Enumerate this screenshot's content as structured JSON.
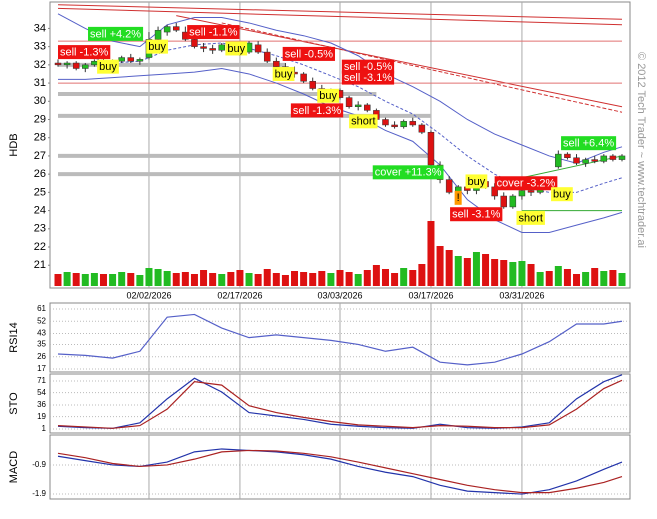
{
  "watermark": "© 2012 Tech Trader ~ www.techtrader.ai",
  "chart_data": [
    {
      "type": "candlestick",
      "ylabel": "HDB",
      "categories": [
        null,
        null,
        null,
        null,
        null,
        null,
        null,
        null,
        null,
        null,
        "02/02/2026",
        null,
        null,
        null,
        null,
        null,
        null,
        null,
        null,
        null,
        "02/17/2026",
        null,
        null,
        null,
        null,
        null,
        null,
        null,
        null,
        null,
        null,
        "03/03/2026",
        null,
        null,
        null,
        null,
        null,
        null,
        null,
        null,
        null,
        "03/17/2026",
        null,
        null,
        null,
        null,
        null,
        null,
        null,
        null,
        null,
        "03/31/2026",
        null,
        null,
        null,
        null,
        null,
        null,
        null,
        null,
        null,
        null,
        null
      ],
      "open": [
        32.1,
        32.0,
        32.1,
        31.8,
        32.0,
        32.2,
        32.1,
        32.2,
        32.4,
        32.2,
        32.4,
        33.4,
        33.8,
        34.1,
        33.8,
        33.4,
        33.0,
        32.9,
        32.8,
        33.0,
        32.8,
        32.7,
        33.1,
        32.7,
        32.2,
        31.9,
        31.6,
        31.5,
        31.1,
        30.7,
        30.4,
        30.6,
        30.2,
        29.7,
        29.8,
        29.5,
        29.0,
        28.7,
        28.6,
        28.9,
        28.7,
        28.3,
        26.5,
        25.7,
        25.0,
        25.3,
        25.1,
        25.6,
        25.3,
        24.8,
        24.2,
        24.8,
        25.1,
        25.0,
        25.5,
        26.4,
        27.1,
        26.9,
        26.6,
        26.8,
        26.7,
        27.0,
        26.8
      ],
      "high": [
        32.3,
        32.2,
        32.2,
        32.1,
        32.3,
        32.4,
        32.3,
        32.5,
        32.6,
        32.4,
        33.8,
        34.1,
        34.2,
        34.3,
        34.1,
        33.6,
        33.2,
        33.1,
        33.2,
        33.2,
        33.0,
        33.3,
        33.3,
        32.9,
        32.4,
        32.1,
        31.9,
        31.6,
        31.3,
        30.9,
        30.7,
        30.7,
        30.3,
        30.0,
        29.9,
        29.6,
        29.1,
        28.9,
        29.0,
        29.1,
        28.8,
        28.4,
        26.7,
        25.9,
        25.4,
        25.5,
        25.8,
        25.9,
        25.5,
        25.0,
        24.9,
        25.2,
        25.3,
        25.6,
        25.7,
        27.3,
        27.2,
        27.1,
        26.9,
        27.0,
        27.1,
        27.1,
        27.1
      ],
      "low": [
        31.9,
        31.8,
        31.7,
        31.6,
        31.9,
        32.0,
        31.9,
        32.1,
        32.1,
        32.0,
        32.3,
        33.1,
        33.6,
        33.8,
        33.3,
        32.9,
        32.7,
        32.6,
        32.7,
        32.6,
        32.5,
        32.6,
        32.6,
        32.1,
        31.8,
        31.5,
        31.3,
        31.0,
        30.6,
        30.2,
        30.1,
        30.1,
        29.6,
        29.5,
        29.4,
        28.9,
        28.6,
        28.5,
        28.5,
        28.6,
        28.2,
        26.4,
        25.5,
        24.9,
        24.8,
        24.9,
        24.9,
        25.2,
        24.6,
        24.1,
        24.1,
        24.6,
        24.8,
        24.9,
        25.3,
        26.3,
        26.8,
        26.5,
        26.4,
        26.6,
        26.6,
        26.7,
        26.7
      ],
      "close": [
        32.0,
        32.1,
        31.8,
        32.0,
        32.2,
        32.1,
        32.2,
        32.4,
        32.2,
        32.3,
        33.4,
        33.9,
        34.1,
        33.9,
        33.4,
        33.0,
        32.9,
        32.8,
        33.1,
        32.8,
        32.7,
        33.2,
        32.7,
        32.2,
        31.9,
        31.6,
        31.5,
        31.1,
        30.7,
        30.4,
        30.6,
        30.2,
        29.7,
        29.8,
        29.5,
        29.0,
        28.7,
        28.6,
        28.9,
        28.7,
        28.3,
        26.5,
        25.7,
        25.0,
        25.3,
        25.1,
        25.6,
        25.3,
        24.8,
        24.2,
        24.8,
        25.1,
        25.0,
        25.5,
        25.4,
        27.1,
        26.9,
        26.6,
        26.8,
        26.7,
        27.0,
        26.8,
        27.0
      ],
      "volume": [
        12,
        14,
        13,
        12,
        13,
        12,
        12,
        14,
        13,
        11,
        18,
        17,
        15,
        13,
        14,
        12,
        16,
        13,
        12,
        14,
        16,
        13,
        12,
        17,
        13,
        11,
        15,
        14,
        13,
        15,
        13,
        16,
        14,
        12,
        16,
        21,
        17,
        13,
        18,
        16,
        22,
        65,
        40,
        36,
        30,
        28,
        34,
        32,
        27,
        26,
        24,
        25,
        22,
        14,
        15,
        20,
        17,
        12,
        14,
        18,
        15,
        16,
        13
      ],
      "up_color": "#22bb22",
      "down_color": "#dd1111",
      "ylim": [
        19.75,
        35.45
      ],
      "yticks": [
        21,
        22,
        23,
        24,
        25,
        26,
        27,
        28,
        29,
        30,
        31,
        32,
        33,
        34
      ],
      "xgrid": true,
      "bands": {
        "x": [
          0,
          3,
          6,
          9,
          12,
          15,
          18,
          21,
          24,
          27,
          30,
          33,
          36,
          39,
          42,
          45,
          48,
          51,
          54,
          57,
          60,
          62
        ],
        "color": "#5560c8",
        "upper": [
          34.8,
          34.0,
          33.3,
          33.0,
          34.2,
          34.6,
          34.6,
          34.3,
          33.9,
          33.6,
          33.2,
          32.5,
          31.5,
          30.8,
          30.0,
          29.0,
          28.2,
          27.6,
          27.0,
          26.6,
          27.2,
          27.5
        ],
        "middle": [
          33.0,
          32.5,
          32.1,
          32.2,
          32.8,
          33.1,
          33.2,
          32.9,
          32.5,
          32.0,
          31.4,
          30.8,
          30.0,
          29.3,
          28.2,
          27.0,
          26.0,
          25.3,
          25.0,
          25.0,
          25.5,
          25.8
        ],
        "lower": [
          31.2,
          31.2,
          31.3,
          31.4,
          31.5,
          31.6,
          31.8,
          31.5,
          31.0,
          30.4,
          29.7,
          29.2,
          28.4,
          27.8,
          26.5,
          24.6,
          23.5,
          22.8,
          22.8,
          23.2,
          23.6,
          23.9
        ]
      },
      "lines": [
        {
          "from": [
            0,
            35.3
          ],
          "to": [
            62,
            34.5
          ],
          "color": "#d03030",
          "style": "thin"
        },
        {
          "from": [
            0,
            35.1
          ],
          "to": [
            62,
            34.2
          ],
          "color": "#d03030",
          "style": "thin"
        },
        {
          "from": [
            13,
            34.7
          ],
          "to": [
            62,
            29.7
          ],
          "color": "#d03030",
          "style": "thin"
        },
        {
          "from": [
            18,
            34.3
          ],
          "to": [
            62,
            29.4
          ],
          "color": "#d03030",
          "style": "dash"
        },
        {
          "from": [
            0,
            33.3
          ],
          "to": [
            62,
            33.3
          ],
          "color": "#e07070",
          "style": "thin"
        },
        {
          "from": [
            0,
            31.0
          ],
          "to": [
            62,
            31.0
          ],
          "color": "#e07070",
          "style": "thin"
        },
        {
          "from": [
            0,
            32.0
          ],
          "to": [
            25,
            32.0
          ],
          "color": "#bbbbbb",
          "style": "thick"
        },
        {
          "from": [
            0,
            30.4
          ],
          "to": [
            35,
            30.4
          ],
          "color": "#bbbbbb",
          "style": "thick"
        },
        {
          "from": [
            0,
            29.2
          ],
          "to": [
            41,
            29.2
          ],
          "color": "#bbbbbb",
          "style": "thick"
        },
        {
          "from": [
            0,
            27.0
          ],
          "to": [
            41,
            27.0
          ],
          "color": "#bbbbbb",
          "style": "thick"
        },
        {
          "from": [
            0,
            26.0
          ],
          "to": [
            41,
            26.0
          ],
          "color": "#bbbbbb",
          "style": "thick"
        },
        {
          "from": [
            51,
            25.8
          ],
          "to": [
            62,
            27.0
          ],
          "color": "#33aa33",
          "style": "thin"
        },
        {
          "from": [
            51,
            24.0
          ],
          "to": [
            62,
            24.0
          ],
          "color": "#33aa33",
          "style": "thin"
        }
      ],
      "signals": [
        {
          "label": "sell +4.2%",
          "at": [
            3.3,
            33.7
          ],
          "color": "#22dd22",
          "text_color": "#ffffff"
        },
        {
          "label": "buy",
          "at": [
            9.7,
            33.0
          ],
          "color": "#ffff33",
          "text_color": "#000000"
        },
        {
          "label": "sell -1.1%",
          "at": [
            14.2,
            33.8
          ],
          "color": "#ee1111",
          "text_color": "#ffffff"
        },
        {
          "label": "sell -1.3%",
          "at": [
            0,
            32.7
          ],
          "color": "#ee1111",
          "text_color": "#ffffff"
        },
        {
          "label": "buy",
          "at": [
            4.3,
            31.9
          ],
          "color": "#ffff33",
          "text_color": "#000000"
        },
        {
          "label": "buy",
          "at": [
            18.4,
            32.9
          ],
          "color": "#ffff33",
          "text_color": "#000000"
        },
        {
          "label": "sell -0.5%",
          "at": [
            24.7,
            32.6
          ],
          "color": "#ee1111",
          "text_color": "#ffffff"
        },
        {
          "label": "buy",
          "at": [
            23.6,
            31.5
          ],
          "color": "#ffff33",
          "text_color": "#000000"
        },
        {
          "label": "sell -0.5%",
          "at": [
            31.2,
            31.9
          ],
          "color": "#ee1111",
          "text_color": "#ffffff"
        },
        {
          "label": "sell -3.1%",
          "at": [
            31.2,
            31.3
          ],
          "color": "#ee1111",
          "text_color": "#ffffff"
        },
        {
          "label": "buy",
          "at": [
            28.5,
            30.3
          ],
          "color": "#ffff33",
          "text_color": "#000000"
        },
        {
          "label": "sell -1.3%",
          "at": [
            25.6,
            29.5
          ],
          "color": "#ee1111",
          "text_color": "#ffffff"
        },
        {
          "label": "short",
          "at": [
            32,
            28.9
          ],
          "color": "#ffff33",
          "text_color": "#000000"
        },
        {
          "label": "cover +11.3%",
          "at": [
            34.6,
            26.1
          ],
          "color": "#22dd22",
          "text_color": "#ffffff"
        },
        {
          "label": "!",
          "at": [
            43.6,
            24.7
          ],
          "color": "#ff9900",
          "text_color": "#000000"
        },
        {
          "label": "buy",
          "at": [
            44.8,
            25.6
          ],
          "color": "#ffff33",
          "text_color": "#000000"
        },
        {
          "label": "cover -3.2%",
          "at": [
            48,
            25.5
          ],
          "color": "#ee1111",
          "text_color": "#ffffff"
        },
        {
          "label": "sell -3.1%",
          "at": [
            43.1,
            23.8
          ],
          "color": "#ee1111",
          "text_color": "#ffffff"
        },
        {
          "label": "short",
          "at": [
            50.4,
            23.6
          ],
          "color": "#ffff33",
          "text_color": "#000000"
        },
        {
          "label": "buy",
          "at": [
            54.2,
            24.9
          ],
          "color": "#ffff33",
          "text_color": "#000000"
        },
        {
          "label": "sell +6.4%",
          "at": [
            55.3,
            27.7
          ],
          "color": "#22dd22",
          "text_color": "#ffffff"
        }
      ]
    },
    {
      "type": "line",
      "ylabel": "RSI14",
      "ylim": [
        14.8,
        65.4
      ],
      "yticks": [
        61,
        52,
        43,
        35,
        26,
        17
      ],
      "grid": true,
      "x": [
        0,
        3,
        6,
        9,
        12,
        15,
        18,
        21,
        24,
        27,
        30,
        33,
        36,
        39,
        42,
        45,
        48,
        51,
        54,
        57,
        60,
        62
      ],
      "series": [
        {
          "color": "#5560c8",
          "values": [
            28,
            27,
            25,
            30,
            55,
            57,
            47,
            40,
            42,
            40,
            38,
            35,
            30,
            33,
            22,
            20,
            22,
            28,
            37,
            50,
            50,
            52
          ]
        }
      ]
    },
    {
      "type": "line",
      "ylabel": "STO",
      "ylim": [
        -4.8,
        81.2
      ],
      "yticks": [
        71,
        54,
        36,
        19,
        1
      ],
      "grid": true,
      "x": [
        0,
        3,
        6,
        9,
        12,
        15,
        18,
        21,
        24,
        27,
        30,
        33,
        36,
        39,
        42,
        45,
        48,
        51,
        54,
        57,
        60,
        62
      ],
      "series": [
        {
          "color": "#2233aa",
          "values": [
            5,
            3,
            2,
            10,
            45,
            75,
            55,
            25,
            20,
            15,
            8,
            5,
            3,
            2,
            8,
            3,
            2,
            4,
            10,
            45,
            70,
            80
          ]
        },
        {
          "color": "#aa2222",
          "values": [
            6,
            4,
            2,
            6,
            30,
            70,
            65,
            35,
            25,
            18,
            12,
            7,
            5,
            3,
            6,
            5,
            3,
            3,
            7,
            30,
            60,
            72
          ]
        }
      ]
    },
    {
      "type": "line",
      "ylabel": "MACD",
      "ylim": [
        -2.07,
        0.13
      ],
      "yticks": [
        -0.9,
        -1.9
      ],
      "grid": true,
      "x": [
        0,
        3,
        6,
        9,
        12,
        15,
        18,
        21,
        24,
        27,
        30,
        33,
        36,
        39,
        42,
        45,
        48,
        51,
        54,
        57,
        60,
        62
      ],
      "series": [
        {
          "color": "#2233aa",
          "values": [
            -0.6,
            -0.75,
            -0.9,
            -0.95,
            -0.8,
            -0.45,
            -0.35,
            -0.4,
            -0.45,
            -0.55,
            -0.7,
            -0.95,
            -1.15,
            -1.3,
            -1.6,
            -1.8,
            -1.85,
            -1.9,
            -1.75,
            -1.45,
            -1.05,
            -0.8
          ]
        },
        {
          "color": "#aa2222",
          "values": [
            -0.5,
            -0.65,
            -0.85,
            -0.95,
            -0.9,
            -0.7,
            -0.45,
            -0.4,
            -0.42,
            -0.5,
            -0.62,
            -0.8,
            -1.0,
            -1.2,
            -1.4,
            -1.6,
            -1.75,
            -1.85,
            -1.85,
            -1.7,
            -1.5,
            -1.3
          ]
        }
      ]
    }
  ]
}
